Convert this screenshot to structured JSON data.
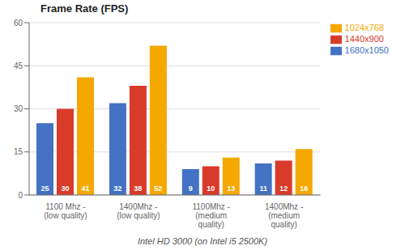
{
  "chart_data": {
    "type": "bar",
    "title": "Frame Rate (FPS)",
    "subtitle": "Intel HD 3000 (on Intel i5 2500K)",
    "categories": [
      "1100 Mhz -\n(low quality)",
      "1400Mhz -\n(low quality)",
      "1100Mhz -\n(medium\nquality)",
      "1400Mhz -\n(medium\nquality)"
    ],
    "series": [
      {
        "name": "1680x1050",
        "color": "#4472C4",
        "values": [
          25,
          32,
          9,
          11
        ]
      },
      {
        "name": "1440x900",
        "color": "#D93B2B",
        "values": [
          30,
          38,
          10,
          12
        ]
      },
      {
        "name": "1024x768",
        "color": "#F5A800",
        "values": [
          41,
          52,
          13,
          16
        ]
      }
    ],
    "ylim": [
      0,
      60
    ],
    "yticks": [
      0,
      15,
      30,
      45,
      60
    ],
    "grid": true,
    "legend": "right",
    "data_labels": true
  }
}
